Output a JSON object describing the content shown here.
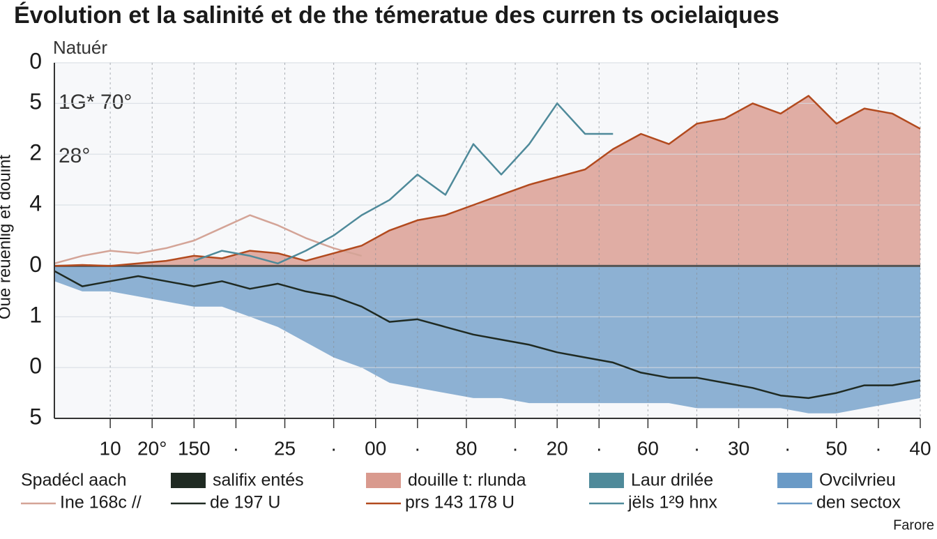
{
  "chart_data": {
    "type": "line",
    "title": "Évolution et la salinité et de the témeratue des curren ts ocielaiques",
    "ylabel": "Oue reuenlig et douint",
    "annotations": [
      "Natuér",
      "1G* 70°",
      "28°"
    ],
    "source": "Farore",
    "x": [
      0,
      2,
      4,
      6,
      8,
      10,
      12,
      14,
      16,
      18,
      20,
      22,
      24,
      26,
      28,
      30,
      32,
      34,
      36,
      38,
      40,
      42,
      44,
      46,
      48,
      50,
      52,
      54,
      56,
      58,
      60,
      62
    ],
    "xlim": [
      0,
      62
    ],
    "xticks": [
      {
        "value": 4,
        "label": "10"
      },
      {
        "value": 7,
        "label": "20°"
      },
      {
        "value": 10,
        "label": "150"
      },
      {
        "value": 13,
        "label": "·"
      },
      {
        "value": 16.5,
        "label": "25"
      },
      {
        "value": 20,
        "label": "·"
      },
      {
        "value": 23,
        "label": "00"
      },
      {
        "value": 26,
        "label": "·"
      },
      {
        "value": 29.5,
        "label": "80"
      },
      {
        "value": 33,
        "label": "·"
      },
      {
        "value": 36,
        "label": "20"
      },
      {
        "value": 39,
        "label": "·"
      },
      {
        "value": 42.5,
        "label": "60"
      },
      {
        "value": 46,
        "label": "·"
      },
      {
        "value": 49,
        "label": "30"
      },
      {
        "value": 52.5,
        "label": "·"
      },
      {
        "value": 56,
        "label": "50"
      },
      {
        "value": 59,
        "label": "·"
      },
      {
        "value": 62,
        "label": "40"
      }
    ],
    "ylim": [
      -3,
      4
    ],
    "yticks": [
      {
        "value": 4,
        "label": "0"
      },
      {
        "value": 3.2,
        "label": "5"
      },
      {
        "value": 2.2,
        "label": "2"
      },
      {
        "value": 1.2,
        "label": "4"
      },
      0,
      {
        "value": -1,
        "label": "1"
      },
      {
        "value": -2,
        "label": "0"
      },
      {
        "value": -3,
        "label": "5"
      }
    ],
    "grid": true,
    "series": [
      {
        "name": "Spadécl aach",
        "note": "Ine 168c //",
        "color": "#d4a497",
        "values": [
          0.05,
          0.2,
          0.3,
          0.25,
          0.35,
          0.5,
          0.75,
          1.0,
          0.8,
          0.55,
          0.35,
          0.2,
          null,
          null,
          null,
          null,
          null,
          null,
          null,
          null,
          null,
          null,
          null,
          null,
          null,
          null,
          null,
          null,
          null,
          null,
          null,
          null
        ]
      },
      {
        "name": "salifix entés",
        "note": "de 197 U",
        "color": "#1f2a22",
        "values": [
          -0.1,
          -0.4,
          -0.3,
          -0.2,
          -0.3,
          -0.4,
          -0.3,
          -0.45,
          -0.35,
          -0.5,
          -0.6,
          -0.8,
          -1.1,
          -1.05,
          -1.2,
          -1.35,
          -1.45,
          -1.55,
          -1.7,
          -1.8,
          -1.9,
          -2.1,
          -2.2,
          -2.2,
          -2.3,
          -2.4,
          -2.55,
          -2.6,
          -2.5,
          -2.35,
          -2.35,
          -2.25
        ]
      },
      {
        "name": "douille t: rlunda",
        "note": "prs 143 178 U",
        "color": "#b24a1e",
        "fill": "#d99a8e",
        "values": [
          0,
          0.02,
          0,
          0.05,
          0.1,
          0.2,
          0.15,
          0.3,
          0.25,
          0.1,
          0.25,
          0.4,
          0.7,
          0.9,
          1.0,
          1.2,
          1.4,
          1.6,
          1.75,
          1.9,
          2.3,
          2.6,
          2.4,
          2.8,
          2.9,
          3.2,
          3.0,
          3.35,
          2.8,
          3.1,
          3.0,
          2.7
        ]
      },
      {
        "name": "Laur drilée",
        "note": "jëls 1²9 hnx",
        "color": "#4f8a9a",
        "values": [
          null,
          null,
          null,
          null,
          null,
          0.1,
          0.3,
          0.2,
          0.05,
          0.3,
          0.6,
          1.0,
          1.3,
          1.8,
          1.4,
          2.4,
          1.8,
          2.4,
          3.2,
          2.6,
          2.6,
          null,
          null,
          null,
          null,
          null,
          null,
          null,
          null,
          null,
          null,
          null
        ]
      },
      {
        "name": "Ovcilvrieu",
        "note": "den sectox",
        "color": "#6a9ac6",
        "area": true,
        "values": [
          -0.3,
          -0.5,
          -0.5,
          -0.6,
          -0.7,
          -0.8,
          -0.8,
          -1.0,
          -1.2,
          -1.5,
          -1.8,
          -2.0,
          -2.3,
          -2.4,
          -2.5,
          -2.6,
          -2.6,
          -2.7,
          -2.7,
          -2.7,
          -2.7,
          -2.7,
          -2.7,
          -2.8,
          -2.8,
          -2.8,
          -2.8,
          -2.9,
          -2.9,
          -2.8,
          -2.7,
          -2.6
        ]
      }
    ]
  }
}
